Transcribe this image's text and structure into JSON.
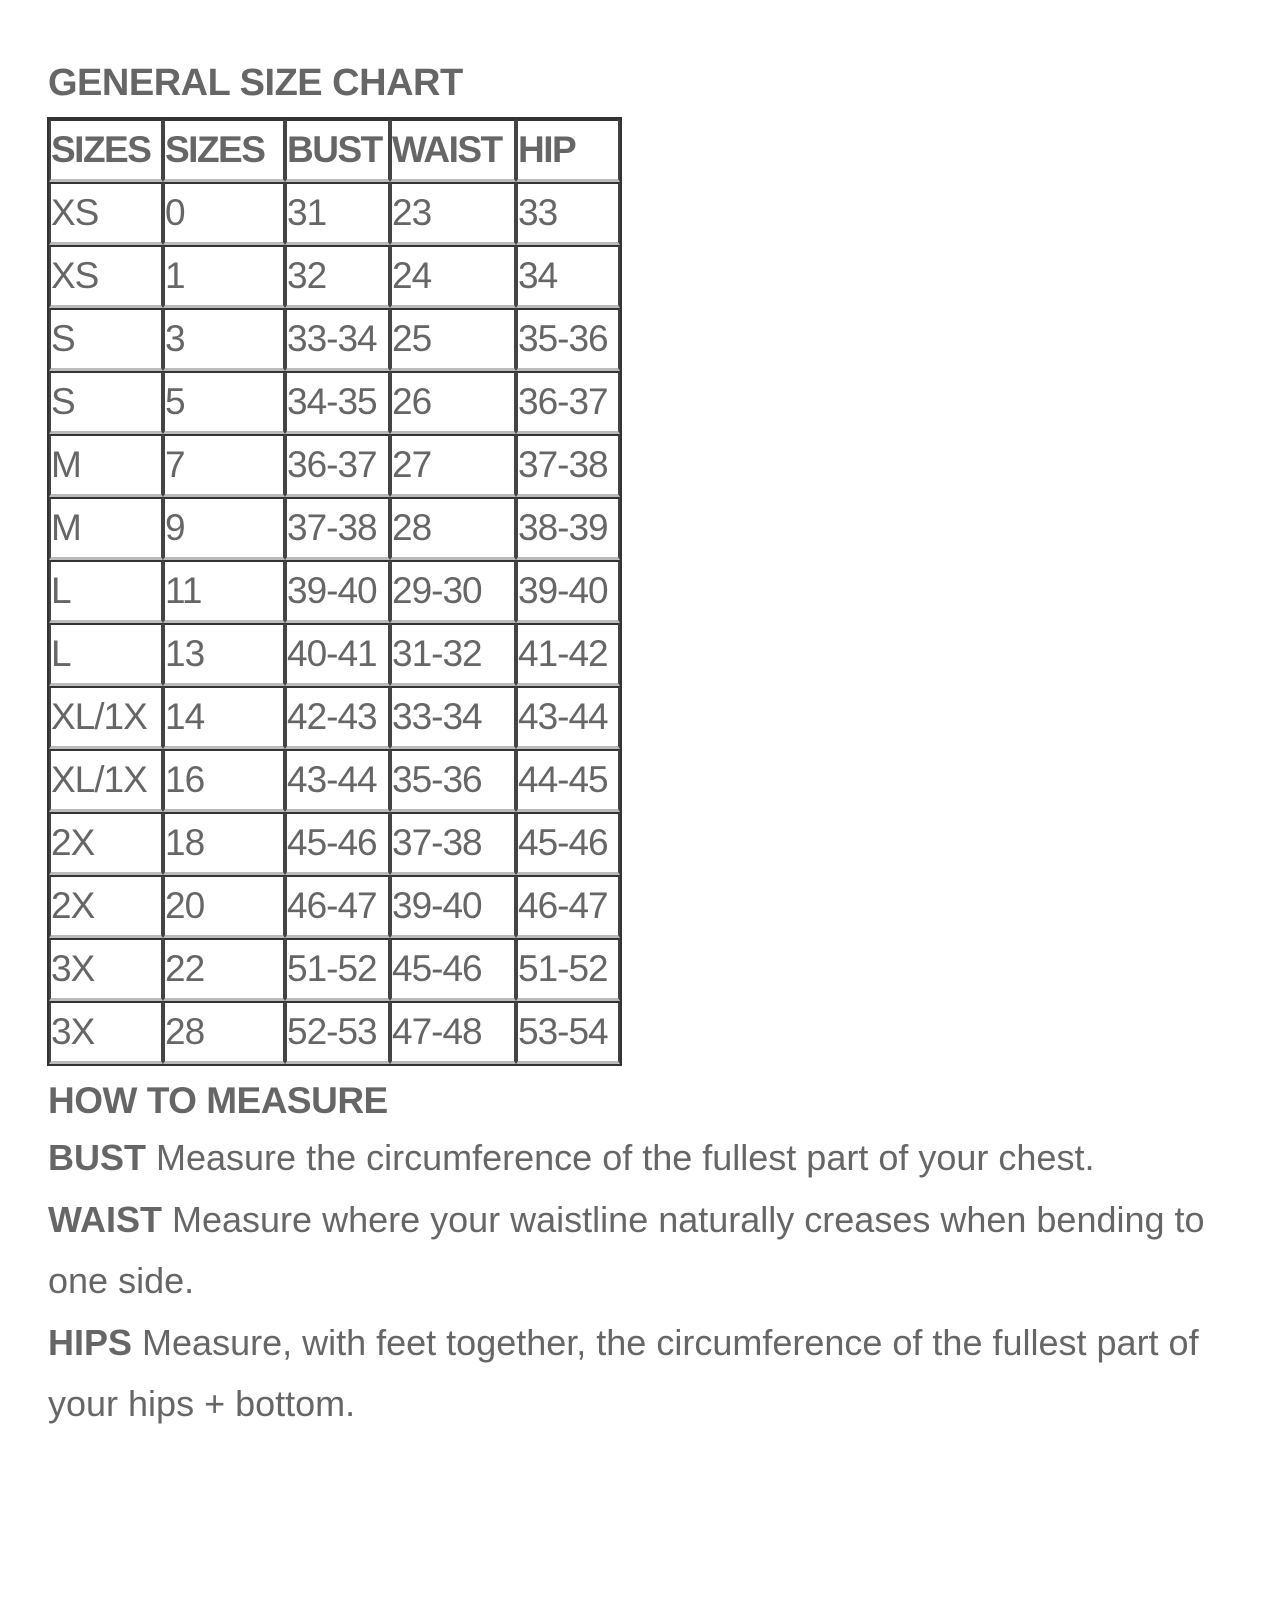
{
  "title": "GENERAL SIZE CHART",
  "table": {
    "headers": [
      "SIZES",
      "SIZES",
      "BUST",
      "WAIST",
      "HIP"
    ],
    "rows": [
      [
        "XS",
        "0",
        "31",
        "23",
        "33"
      ],
      [
        "XS",
        "1",
        "32",
        "24",
        "34"
      ],
      [
        "S",
        "3",
        "33-34",
        "25",
        "35-36"
      ],
      [
        "S",
        "5",
        "34-35",
        "26",
        "36-37"
      ],
      [
        "M",
        "7",
        "36-37",
        "27",
        "37-38"
      ],
      [
        "M",
        "9",
        "37-38",
        "28",
        "38-39"
      ],
      [
        "L",
        "11",
        "39-40",
        "29-30",
        "39-40"
      ],
      [
        "L",
        "13",
        "40-41",
        "31-32",
        "41-42"
      ],
      [
        "XL/1X",
        "14",
        "42-43",
        "33-34",
        "43-44"
      ],
      [
        "XL/1X",
        "16",
        "43-44",
        "35-36",
        "44-45"
      ],
      [
        "2X",
        "18",
        "45-46",
        "37-38",
        "45-46"
      ],
      [
        "2X",
        "20",
        "46-47",
        "39-40",
        "46-47"
      ],
      [
        "3X",
        "22",
        "51-52",
        "45-46",
        "51-52"
      ],
      [
        "3X",
        "28",
        "52-53",
        "47-48",
        "53-54"
      ]
    ]
  },
  "how_to_measure": {
    "heading": "HOW TO MEASURE",
    "items": [
      {
        "term": "BUST",
        "text": " Measure the circumference of the fullest part of your chest."
      },
      {
        "term": "WAIST",
        "text": " Measure where your waistline naturally creases when bending to one side."
      },
      {
        "term": "HIPS",
        "text": " Measure, with feet together, the circumference of the fullest part of your hips + bottom."
      }
    ]
  }
}
